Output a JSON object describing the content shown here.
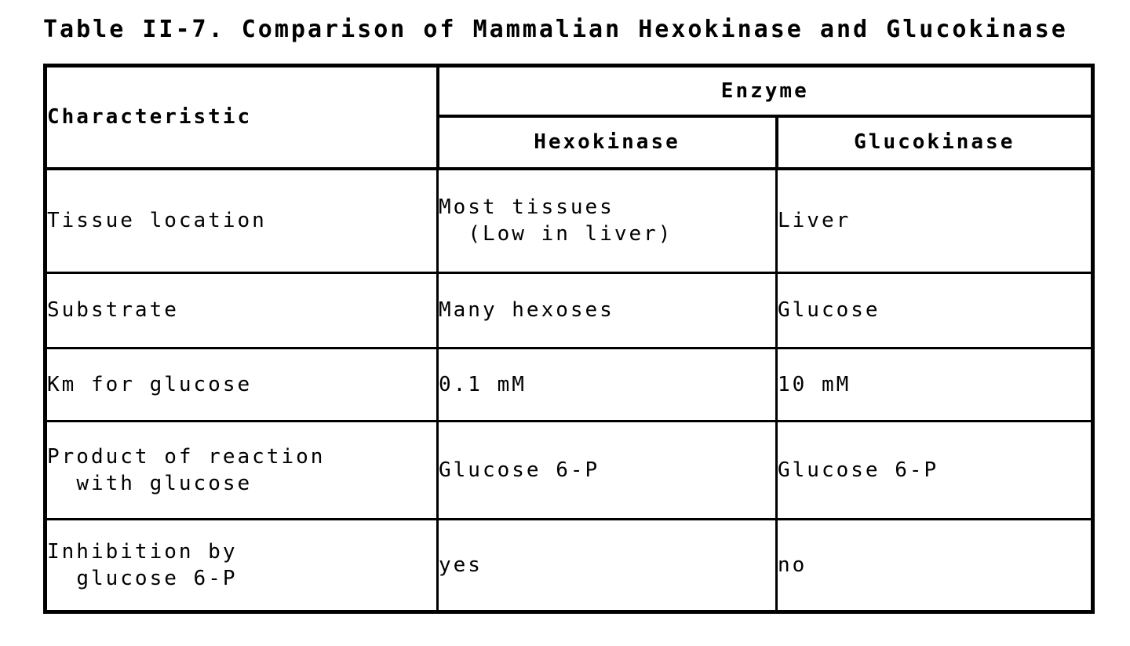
{
  "title": "Table II-7. Comparison of Mammalian Hexokinase and Glucokinase",
  "table": {
    "header": {
      "characteristic": "Characteristic",
      "enzyme_group": "Enzyme",
      "enzyme_columns": [
        "Hexokinase",
        "Glucokinase"
      ]
    },
    "rows": [
      {
        "characteristic": "Tissue location",
        "hexokinase": "Most tissues\n  (Low in liver)",
        "glucokinase": "Liver"
      },
      {
        "characteristic": "Substrate",
        "hexokinase": "Many hexoses",
        "glucokinase": "Glucose"
      },
      {
        "characteristic": "Km for glucose",
        "hexokinase": "0.1 mM",
        "glucokinase": "10 mM"
      },
      {
        "characteristic": "Product of reaction\n  with glucose",
        "hexokinase": "Glucose 6-P",
        "glucokinase": "Glucose 6-P"
      },
      {
        "characteristic": "Inhibition by\n  glucose 6-P",
        "hexokinase": "yes",
        "glucokinase": "no"
      }
    ]
  },
  "colors": {
    "foreground": "#000000",
    "background": "#ffffff"
  }
}
